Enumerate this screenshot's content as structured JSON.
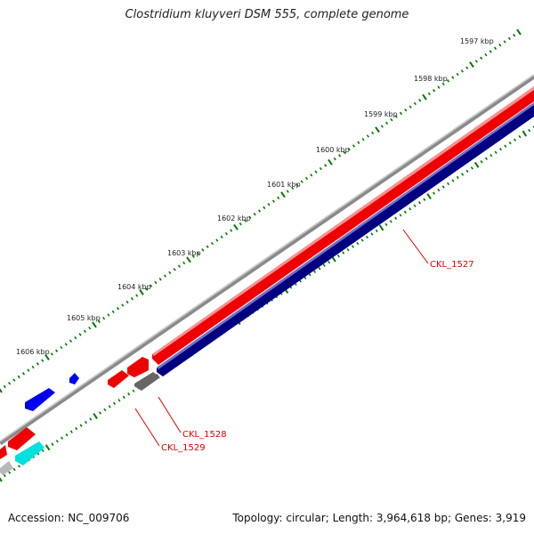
{
  "title": "Clostridium kluyveri DSM 555, complete genome",
  "footer": {
    "accession": "Accession: NC_009706",
    "summary": "Topology: circular; Length: 3,964,618 bp; Genes: 3,919"
  },
  "ticks": [
    "1597 kbp",
    "1598 kbp",
    "1599 kbp",
    "1600 kbp",
    "1601 kbp",
    "1602 kbp",
    "1603 kbp",
    "1604 kbp",
    "1605 kbp",
    "1606 kbp"
  ],
  "genes": [
    {
      "label": "CKL_1527",
      "strand": "plus",
      "color": "#ee0000"
    },
    {
      "label": "CKL_1528",
      "strand": "minus",
      "color": "#666666"
    },
    {
      "label": "CKL_1529",
      "strand": "plus",
      "color": "#ee0000"
    }
  ],
  "colors": {
    "backbone": "#8a8a8a",
    "forward_cds": "#ee0000",
    "reverse_cds": "#000080",
    "other_forward": "#0000ee",
    "other_reverse": "#00e0e0",
    "tick": "#007700",
    "label": "#e00000"
  }
}
